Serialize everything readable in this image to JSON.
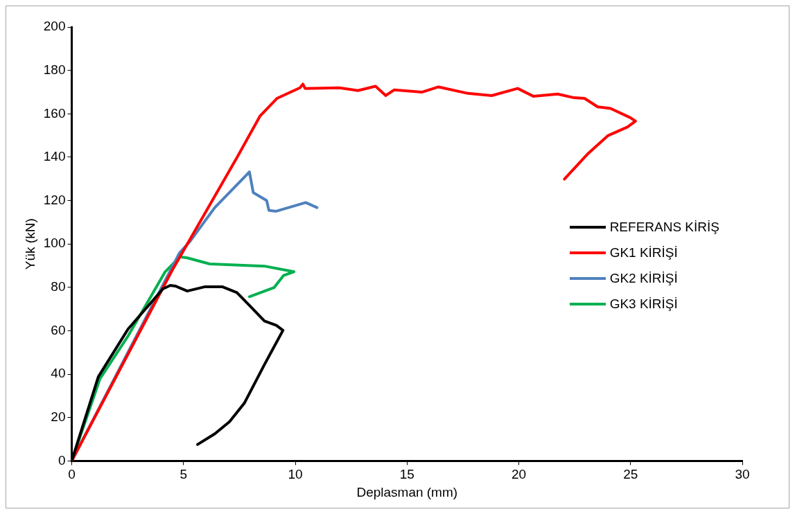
{
  "chart_data": {
    "type": "line",
    "xlabel": "Deplasman (mm)",
    "ylabel": "Yük (kN)",
    "xlim": [
      0,
      30
    ],
    "xticks": [
      0,
      5,
      10,
      15,
      20,
      25,
      30
    ],
    "ylim": [
      0,
      200
    ],
    "yticks": [
      0,
      20,
      40,
      60,
      80,
      100,
      120,
      140,
      160,
      180,
      200
    ],
    "grid": false,
    "legend": "right",
    "marker": "none",
    "line_style": "solid",
    "series": [
      {
        "name": "REFERANS KİRİŞ",
        "color": "#000000",
        "x": [
          0,
          1.19,
          2.52,
          4.08,
          4.41,
          4.64,
          5.17,
          5.97,
          6.73,
          7.39,
          7.95,
          8.62,
          9.15,
          9.45,
          8.62,
          7.72,
          7.06,
          6.4,
          5.63
        ],
        "values": [
          0,
          38.8,
          60.8,
          79.3,
          80.9,
          80.6,
          78.3,
          80.3,
          80.3,
          77.6,
          71.7,
          64.5,
          62.5,
          60.2,
          44.4,
          26.6,
          18.1,
          12.5,
          7.6
        ]
      },
      {
        "name": "GK1 KİRİŞİ",
        "color": "#ff0000",
        "x": [
          0,
          4.5,
          7.39,
          8.42,
          9.18,
          10.21,
          10.34,
          10.44,
          11.97,
          12.8,
          13.59,
          14.05,
          14.42,
          15.68,
          16.41,
          17.73,
          18.79,
          19.95,
          20.65,
          21.74,
          22.47,
          22.94,
          23.53,
          24.1,
          24.99,
          25.22,
          24.86,
          24,
          23.07,
          22.04
        ],
        "values": [
          0,
          88,
          139.8,
          158.9,
          167.1,
          172,
          173.7,
          171.7,
          172,
          170.7,
          172.7,
          168.4,
          171,
          170,
          172.4,
          169.4,
          168.4,
          171.7,
          168.1,
          169.1,
          167.4,
          167.1,
          163.2,
          162.5,
          158.2,
          156.6,
          153.9,
          150,
          141.4,
          129.9
        ]
      },
      {
        "name": "GK2 KİRİŞİ",
        "color": "#4f81bd",
        "x": [
          0,
          4.81,
          5.3,
          6.4,
          7.95,
          8.12,
          8.72,
          8.82,
          9.15,
          10.47,
          10.71,
          10.97
        ],
        "values": [
          0,
          95.7,
          101.3,
          116.8,
          133.2,
          123.7,
          120,
          115.5,
          115.1,
          119.1,
          118,
          116.8
        ]
      },
      {
        "name": "GK3 KİRİŞİ",
        "color": "#00b050",
        "x": [
          0,
          1.26,
          2.52,
          4.18,
          4.84,
          5.17,
          6.17,
          8.62,
          9.94,
          9.48,
          9.05,
          7.95
        ],
        "values": [
          0,
          37.8,
          57.6,
          87.2,
          94.1,
          93.6,
          90.8,
          89.8,
          87.2,
          85.5,
          79.9,
          75.7
        ]
      }
    ]
  }
}
